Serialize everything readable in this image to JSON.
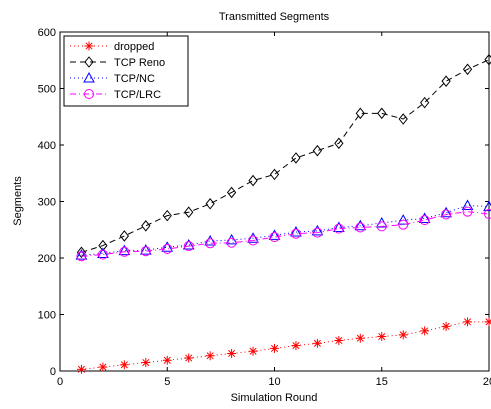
{
  "chart_data": {
    "type": "line",
    "title": "Transmitted Segments",
    "xlabel": "Simulation Round",
    "ylabel": "Segments",
    "xlim": [
      0,
      20
    ],
    "ylim": [
      0,
      600
    ],
    "xticks": [
      0,
      5,
      10,
      15,
      20
    ],
    "yticks": [
      0,
      100,
      200,
      300,
      400,
      500,
      600
    ],
    "grid": false,
    "legend_position": "top-left",
    "x": [
      1,
      2,
      3,
      4,
      5,
      6,
      7,
      8,
      9,
      10,
      11,
      12,
      13,
      14,
      15,
      16,
      17,
      18,
      19,
      20
    ],
    "series": [
      {
        "name": "dropped",
        "color": "#ff0000",
        "line_style": "dotted",
        "marker": "asterisk",
        "values": [
          3,
          7,
          11,
          15,
          19,
          23,
          27,
          31,
          35,
          40,
          45,
          49,
          54,
          58,
          61,
          64,
          71,
          79,
          87,
          87
        ]
      },
      {
        "name": "TCP Reno",
        "color": "#000000",
        "line_style": "dashed",
        "marker": "diamond",
        "values": [
          210,
          222,
          239,
          257,
          275,
          281,
          296,
          316,
          337,
          348,
          377,
          390,
          403,
          456,
          456,
          446,
          475,
          513,
          534,
          551
        ]
      },
      {
        "name": "TCP/NC",
        "color": "#0000ff",
        "line_style": "dotted",
        "marker": "triangle",
        "values": [
          205,
          208,
          213,
          214,
          219,
          223,
          230,
          232,
          235,
          240,
          246,
          248,
          254,
          257,
          262,
          267,
          270,
          280,
          293,
          291
        ]
      },
      {
        "name": "TCP/LRC",
        "color": "#ff00ff",
        "line_style": "dashdot",
        "marker": "circle",
        "values": [
          203,
          206,
          211,
          212,
          216,
          221,
          226,
          227,
          231,
          237,
          243,
          245,
          252,
          254,
          256,
          259,
          267,
          277,
          282,
          278
        ]
      }
    ]
  }
}
